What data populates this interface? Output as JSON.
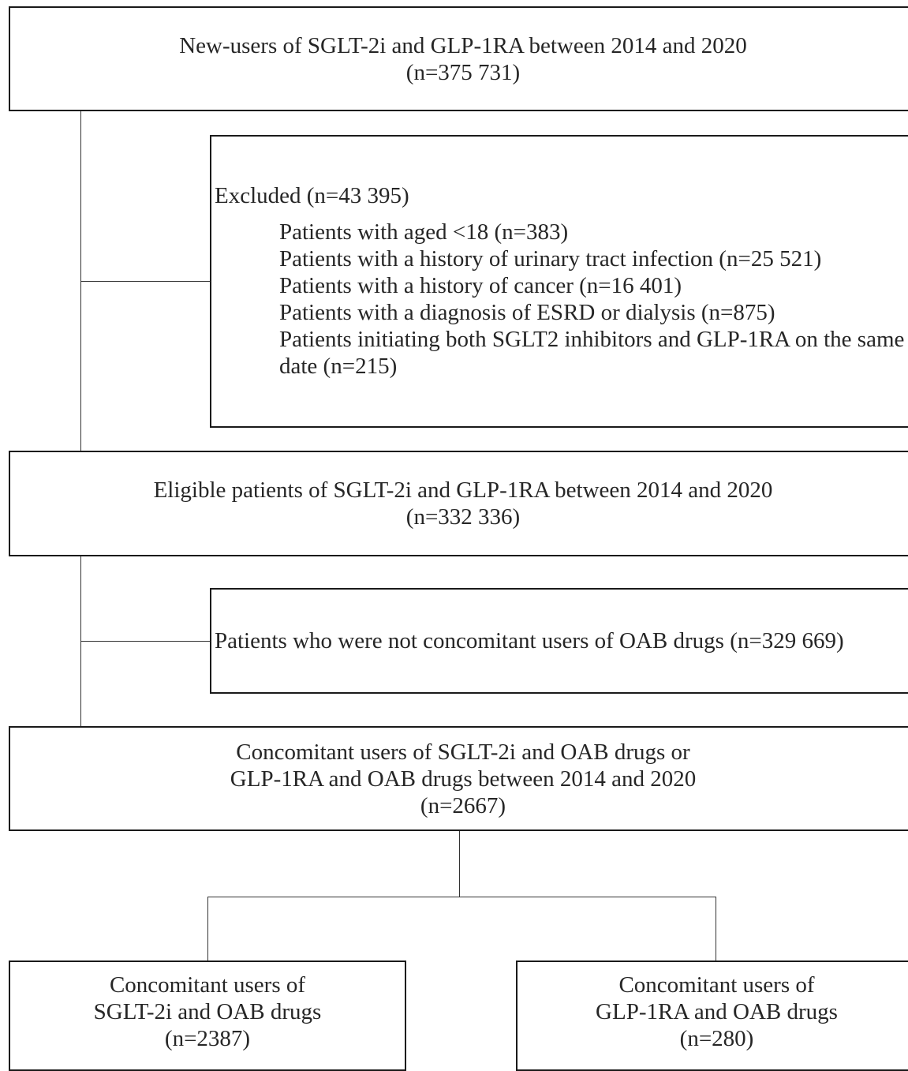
{
  "top_box": {
    "line1": "New-users of SGLT-2i and GLP-1RA between 2014 and 2020",
    "line2": "(n=375 731)"
  },
  "excluded_box": {
    "heading": "Excluded (n=43 395)",
    "items": [
      "Patients with aged <18 (n=383)",
      "Patients with a history of urinary tract infection (n=25 521)",
      "Patients with a history of cancer (n=16 401)",
      "Patients with a diagnosis of ESRD or dialysis (n=875)",
      "Patients initiating both SGLT2 inhibitors and GLP-1RA on the same date (n=215)"
    ]
  },
  "eligible_box": {
    "line1": "Eligible patients of SGLT-2i and GLP-1RA between 2014 and 2020",
    "line2": "(n=332 336)"
  },
  "not_concomitant_box": {
    "text": "Patients who were not concomitant users of OAB drugs (n=329 669)"
  },
  "concomitant_box": {
    "line1": "Concomitant users of SGLT-2i and OAB drugs or",
    "line2": "GLP-1RA and OAB drugs between 2014 and 2020",
    "line3": "(n=2667)"
  },
  "sglt_box": {
    "line1": "Concomitant users of",
    "line2": "SGLT-2i and OAB drugs",
    "line3": "(n=2387)"
  },
  "glp_box": {
    "line1": "Concomitant users of",
    "line2": "GLP-1RA and OAB drugs",
    "line3": "(n=280)"
  }
}
